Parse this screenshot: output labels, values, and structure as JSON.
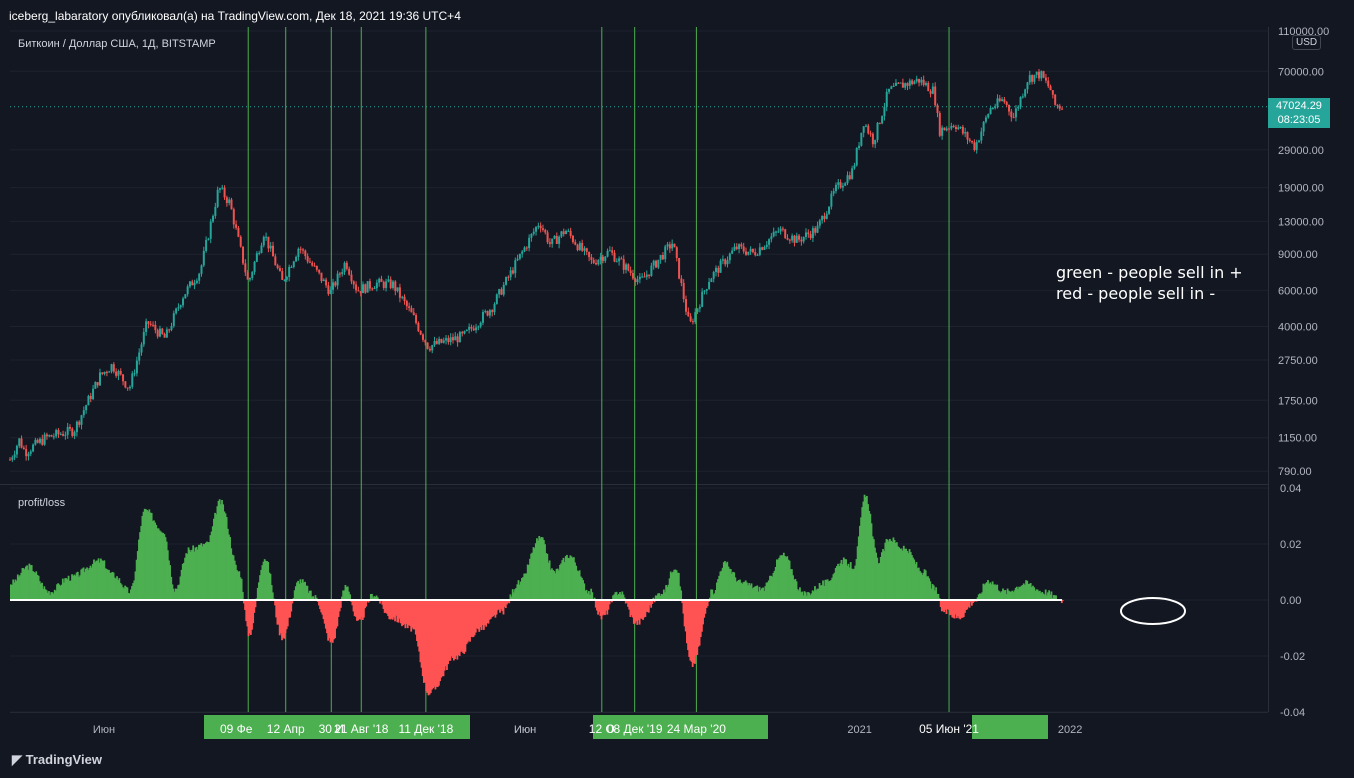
{
  "header": {
    "published_line": "iceberg_labaratory опубликовал(а) на TradingView.com, Дек 18, 2021 19:36 UTC+4"
  },
  "main_pane": {
    "symbol_line": "Биткоин / Доллар США, 1Д, BITSTAMP",
    "currency_badge": "USD",
    "last_price": "47024.29",
    "countdown": "08:23:05"
  },
  "indicator_pane": {
    "title": "profit/loss"
  },
  "annotation": {
    "line1": "green - people sell in +",
    "line2": "red - people sell in -"
  },
  "footer": {
    "brand": "TradingView"
  },
  "chart_data": [
    {
      "type": "candlestick",
      "scale": "log",
      "price_ticks": [
        "110000.00",
        "70000.00",
        "47024.29",
        "29000.00",
        "19000.00",
        "13000.00",
        "9000.00",
        "6000.00",
        "4000.00",
        "2750.00",
        "1750.00",
        "1150.00",
        "790.00"
      ],
      "x_ticks": [
        "Июн",
        "2021",
        "2022",
        "Июн"
      ],
      "price_series": [
        [
          "2016-12-20",
          900
        ],
        [
          "2017-01-05",
          1120
        ],
        [
          "2017-01-15",
          980
        ],
        [
          "2017-02-20",
          1150
        ],
        [
          "2017-03-15",
          1200
        ],
        [
          "2017-04-10",
          1250
        ],
        [
          "2017-05-25",
          2300
        ],
        [
          "2017-06-15",
          2600
        ],
        [
          "2017-07-15",
          2000
        ],
        [
          "2017-08-15",
          4200
        ],
        [
          "2017-09-15",
          3500
        ],
        [
          "2017-10-15",
          5600
        ],
        [
          "2017-11-15",
          7500
        ],
        [
          "2017-12-17",
          19000
        ],
        [
          "2018-01-05",
          16000
        ],
        [
          "2018-02-06",
          6500
        ],
        [
          "2018-03-05",
          11500
        ],
        [
          "2018-04-06",
          6600
        ],
        [
          "2018-05-05",
          9800
        ],
        [
          "2018-06-29",
          5900
        ],
        [
          "2018-07-25",
          8300
        ],
        [
          "2018-08-14",
          6000
        ],
        [
          "2018-09-15",
          6500
        ],
        [
          "2018-10-15",
          6400
        ],
        [
          "2018-11-20",
          4400
        ],
        [
          "2018-12-15",
          3200
        ],
        [
          "2019-02-15",
          3600
        ],
        [
          "2019-04-05",
          5000
        ],
        [
          "2019-05-15",
          8000
        ],
        [
          "2019-06-26",
          13000
        ],
        [
          "2019-07-15",
          10000
        ],
        [
          "2019-08-10",
          11800
        ],
        [
          "2019-09-25",
          8200
        ],
        [
          "2019-10-25",
          9300
        ],
        [
          "2019-12-18",
          6600
        ],
        [
          "2020-02-12",
          10300
        ],
        [
          "2020-03-12",
          4000
        ],
        [
          "2020-04-15",
          6800
        ],
        [
          "2020-06-01",
          9700
        ],
        [
          "2020-07-01",
          9100
        ],
        [
          "2020-08-15",
          11800
        ],
        [
          "2020-09-15",
          10500
        ],
        [
          "2020-10-20",
          12000
        ],
        [
          "2020-11-20",
          18500
        ],
        [
          "2020-12-20",
          23000
        ],
        [
          "2021-01-08",
          40000
        ],
        [
          "2021-01-25",
          32000
        ],
        [
          "2021-02-20",
          56000
        ],
        [
          "2021-03-15",
          60000
        ],
        [
          "2021-04-14",
          63500
        ],
        [
          "2021-05-10",
          56000
        ],
        [
          "2021-05-19",
          36000
        ],
        [
          "2021-06-15",
          39000
        ],
        [
          "2021-07-20",
          30000
        ],
        [
          "2021-08-15",
          46000
        ],
        [
          "2021-09-07",
          51000
        ],
        [
          "2021-09-25",
          42000
        ],
        [
          "2021-10-20",
          65000
        ],
        [
          "2021-11-10",
          68000
        ],
        [
          "2021-11-28",
          57000
        ],
        [
          "2021-12-04",
          48000
        ],
        [
          "2021-12-18",
          47024
        ]
      ]
    },
    {
      "type": "area",
      "name": "profit/loss",
      "y_ticks": [
        "0.04",
        "0.02",
        "0.00",
        "-0.02",
        "-0.04"
      ],
      "ylim": [
        -0.04,
        0.04
      ],
      "series": [
        [
          "2016-12-20",
          0.006
        ],
        [
          "2017-01-20",
          0.012
        ],
        [
          "2017-02-25",
          0.003
        ],
        [
          "2017-04-01",
          0.008
        ],
        [
          "2017-05-25",
          0.014
        ],
        [
          "2017-06-15",
          0.009
        ],
        [
          "2017-07-15",
          0.003
        ],
        [
          "2017-08-10",
          0.032
        ],
        [
          "2017-09-10",
          0.025
        ],
        [
          "2017-10-01",
          0.004
        ],
        [
          "2017-10-25",
          0.018
        ],
        [
          "2017-11-25",
          0.02
        ],
        [
          "2017-12-18",
          0.035
        ],
        [
          "2018-01-20",
          0.01
        ],
        [
          "2018-02-06",
          -0.012
        ],
        [
          "2018-03-05",
          0.015
        ],
        [
          "2018-04-05",
          -0.013
        ],
        [
          "2018-05-05",
          0.007
        ],
        [
          "2018-06-01",
          0.001
        ],
        [
          "2018-06-29",
          -0.015
        ],
        [
          "2018-07-25",
          0.005
        ],
        [
          "2018-08-14",
          -0.008
        ],
        [
          "2018-09-10",
          0.002
        ],
        [
          "2018-10-10",
          -0.006
        ],
        [
          "2018-11-15",
          -0.01
        ],
        [
          "2018-12-15",
          -0.033
        ],
        [
          "2019-02-01",
          -0.02
        ],
        [
          "2019-03-15",
          -0.01
        ],
        [
          "2019-04-20",
          -0.004
        ],
        [
          "2019-05-20",
          0.006
        ],
        [
          "2019-06-26",
          0.022
        ],
        [
          "2019-07-20",
          0.01
        ],
        [
          "2019-08-15",
          0.016
        ],
        [
          "2019-09-20",
          0.003
        ],
        [
          "2019-10-10",
          -0.006
        ],
        [
          "2019-11-10",
          0.003
        ],
        [
          "2019-12-10",
          -0.008
        ],
        [
          "2020-01-25",
          0.003
        ],
        [
          "2020-02-15",
          0.012
        ],
        [
          "2020-03-15",
          -0.023
        ],
        [
          "2020-04-20",
          0.003
        ],
        [
          "2020-05-10",
          0.013
        ],
        [
          "2020-06-10",
          0.006
        ],
        [
          "2020-07-15",
          0.004
        ],
        [
          "2020-08-20",
          0.016
        ],
        [
          "2020-09-25",
          0.002
        ],
        [
          "2020-11-01",
          0.006
        ],
        [
          "2020-12-01",
          0.014
        ],
        [
          "2020-12-20",
          0.012
        ],
        [
          "2021-01-10",
          0.037
        ],
        [
          "2021-02-01",
          0.014
        ],
        [
          "2021-02-20",
          0.022
        ],
        [
          "2021-03-20",
          0.018
        ],
        [
          "2021-04-20",
          0.01
        ],
        [
          "2021-05-10",
          0.004
        ],
        [
          "2021-05-25",
          -0.004
        ],
        [
          "2021-06-20",
          -0.006
        ],
        [
          "2021-07-20",
          0.0
        ],
        [
          "2021-08-10",
          0.007
        ],
        [
          "2021-09-10",
          0.003
        ],
        [
          "2021-10-15",
          0.006
        ],
        [
          "2021-11-15",
          0.003
        ],
        [
          "2021-12-18",
          0.0
        ]
      ]
    }
  ],
  "event_labels": [
    "09 Фе",
    "12 Апр",
    "30 И",
    "21 Авг '18",
    "11 Дек '18",
    "12 О",
    "08 Дек '19",
    "24 Мар '20",
    "05 Июн '21"
  ],
  "colors": {
    "up": "#26a69a",
    "down": "#ef5350",
    "area_pos": "#4caf50",
    "area_neg": "#ff5252",
    "vline": "#4caf50",
    "bg": "#131722",
    "grid": "#2a2e39",
    "zero": "#ffffff"
  }
}
